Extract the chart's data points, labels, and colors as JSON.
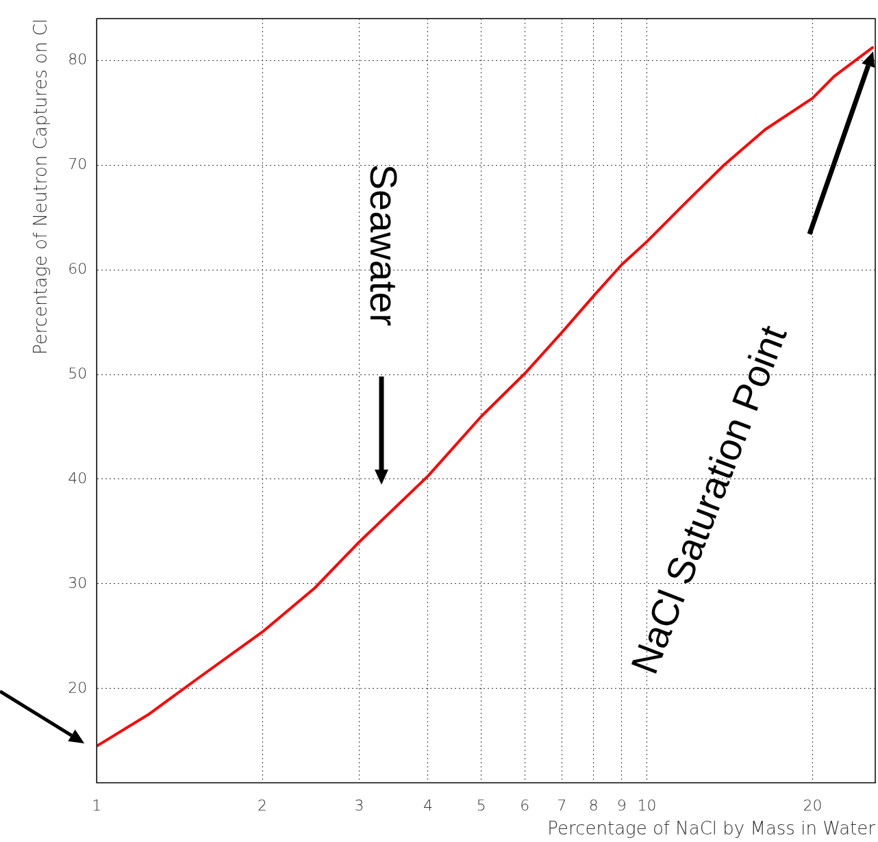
{
  "chart_data": {
    "type": "line",
    "xlabel": "Percentage of NaCl by Mass in Water",
    "ylabel": "Percentage of Neutron Captures on Cl",
    "x": [
      1,
      1.24,
      1.53,
      2,
      2.49,
      3,
      4,
      5,
      6,
      7,
      8,
      9,
      10,
      11.7,
      13.8,
      16.4,
      20,
      21.9,
      25.8
    ],
    "series": [
      {
        "color": "#ff0000",
        "values": [
          14.5,
          17.5,
          21.0,
          25.4,
          29.6,
          34.0,
          40.3,
          46.0,
          50.1,
          54.0,
          57.5,
          60.5,
          62.7,
          66.3,
          70.0,
          73.4,
          76.4,
          78.5,
          81.3
        ]
      }
    ],
    "log": "x",
    "xlim": [
      1,
      26
    ],
    "xticks": [
      1,
      2,
      3,
      4,
      5,
      6,
      7,
      8,
      9,
      10,
      20
    ],
    "ylim": [
      11,
      84
    ],
    "yticks": [
      20,
      30,
      40,
      50,
      60,
      70,
      80
    ],
    "grid": true,
    "marker": "none",
    "line_style": "solid",
    "legend": false,
    "annotations": [
      "Seawater",
      "NaCl Saturation Point"
    ]
  }
}
